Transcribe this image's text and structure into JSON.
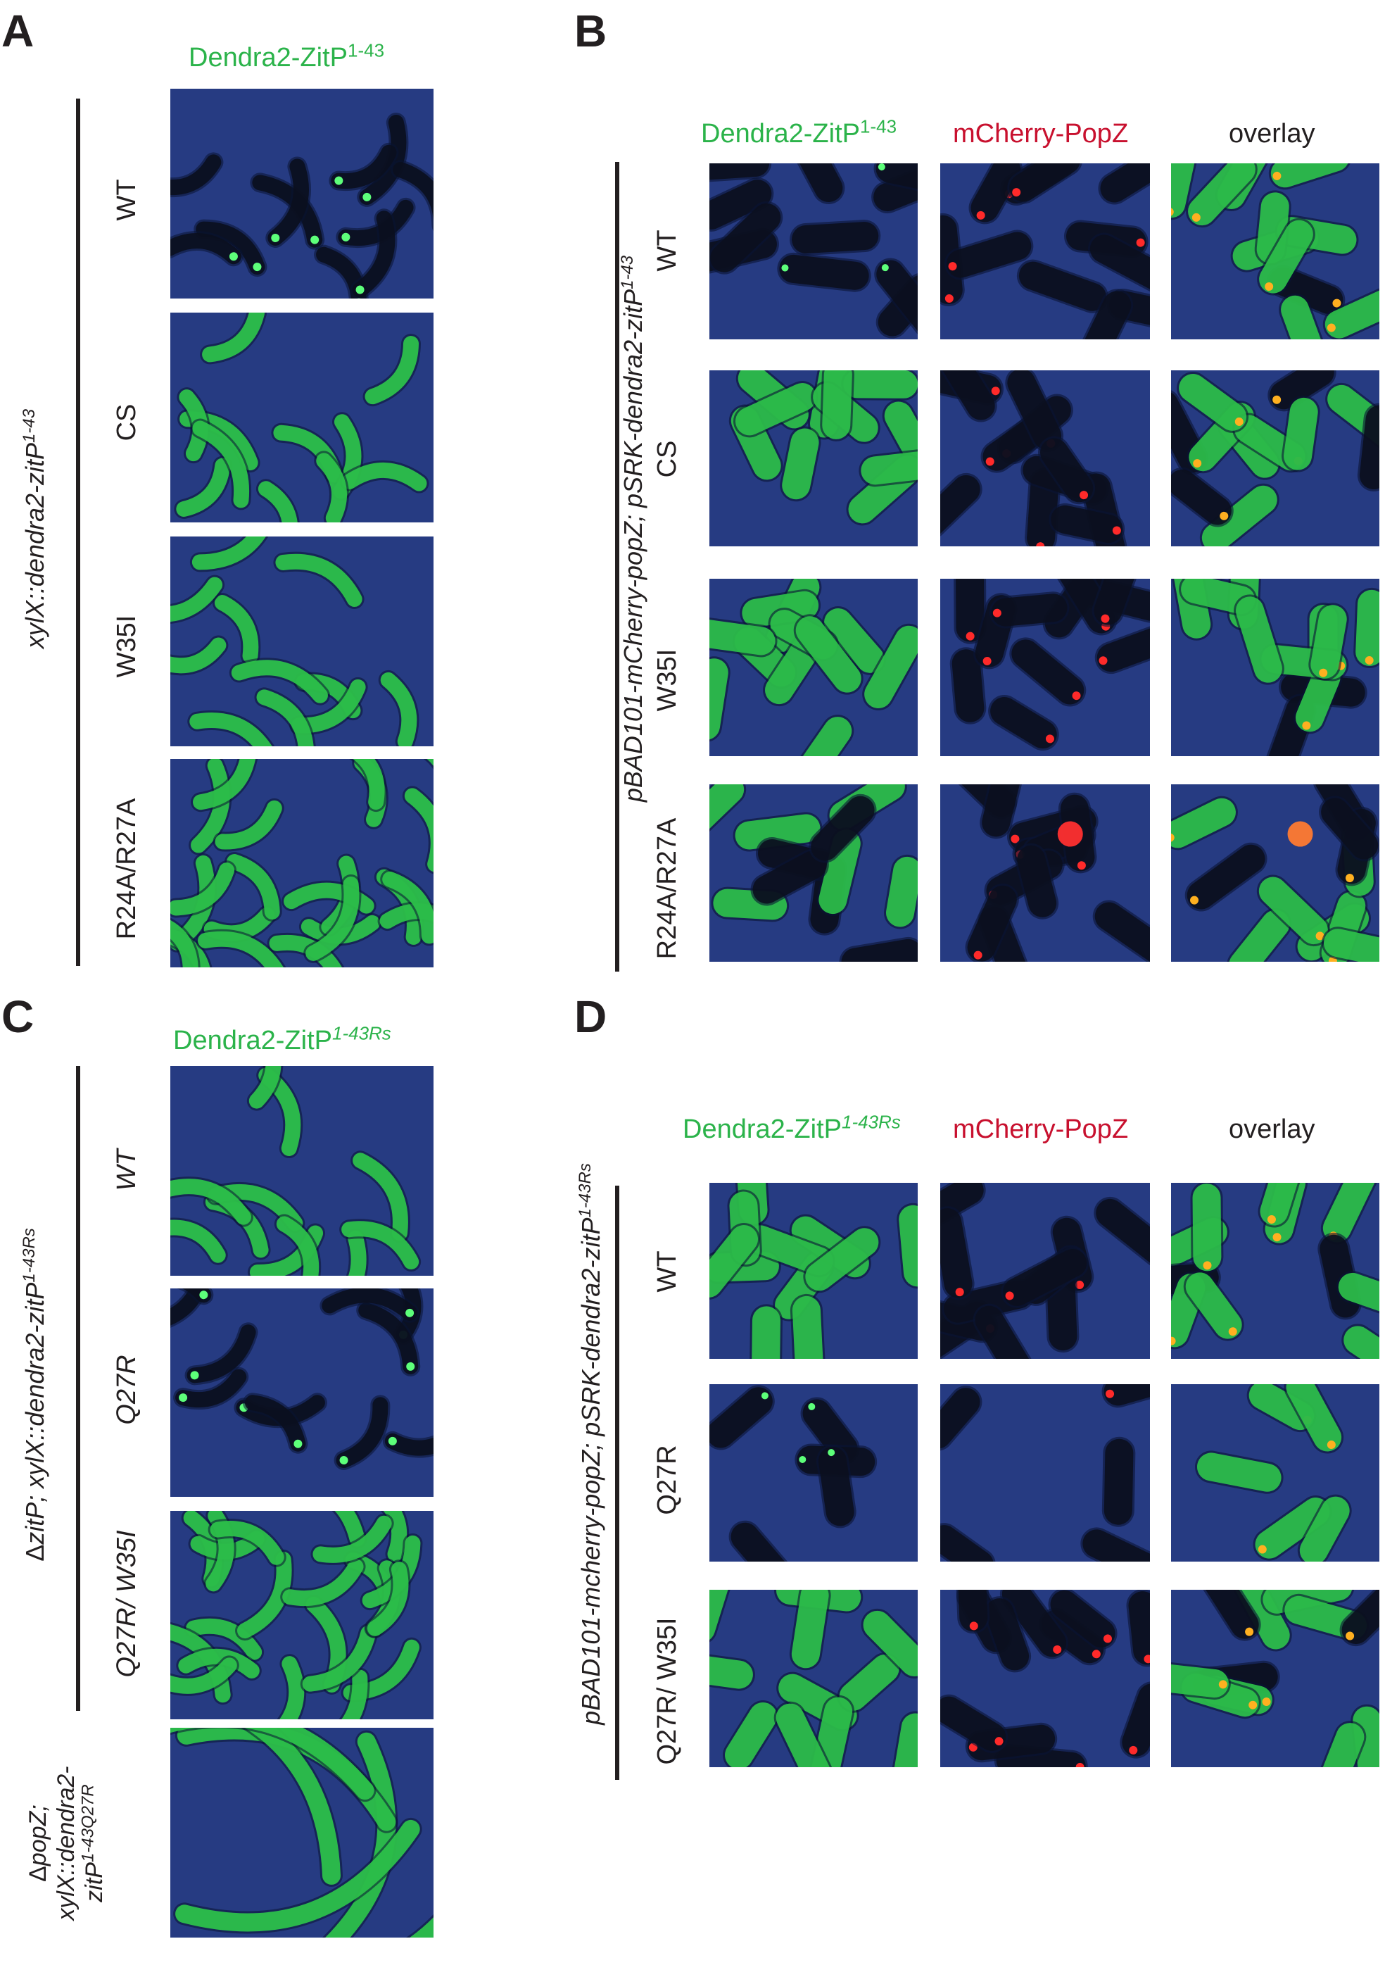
{
  "panels": {
    "A": {
      "letter": "A",
      "header": {
        "main": "Dendra2-ZitP",
        "sup": "1-43"
      },
      "side": {
        "main": "xylX::dendra2-zitP",
        "sup": "1-43"
      },
      "rows": [
        "WT",
        "CS",
        "W35I",
        "R24A/R27A"
      ]
    },
    "B": {
      "letter": "B",
      "headers": [
        {
          "main": "Dendra2-ZitP",
          "sup": "1-43"
        },
        {
          "main": "mCherry-PopZ"
        },
        {
          "main": "overlay"
        }
      ],
      "side": {
        "main": "pBAD101-mCherry-popZ; pSRK-dendra2-zitP",
        "sup": "1-43"
      },
      "rows": [
        "WT",
        "CS",
        "W35I",
        "R24A/R27A"
      ]
    },
    "C": {
      "letter": "C",
      "header": {
        "main": "Dendra2-ZitP",
        "sup": "1-43Rs"
      },
      "side": {
        "prefix": "Δ",
        "main": "zitP; xylX::dendra2-zitP",
        "sup": "1-43Rs"
      },
      "side2": {
        "line1_prefix": "Δ",
        "line1": "popZ;",
        "line2": "xylX::dendra2-",
        "line3": "zitP",
        "line3_sup": "1-43Q27R"
      },
      "rows": [
        "WT",
        "Q27R",
        "Q27R/ W35I"
      ]
    },
    "D": {
      "letter": "D",
      "headers": [
        {
          "main": "Dendra2-ZitP",
          "sup": "1-43Rs"
        },
        {
          "main": "mCherry-PopZ"
        },
        {
          "main": "overlay"
        }
      ],
      "side": {
        "main": "pBAD101-mcherry-popZ; pSRK-dendra2-zitP",
        "sup": "1-43Rs"
      },
      "rows": [
        "WT",
        "Q27R",
        "Q27R/ W35I"
      ]
    }
  },
  "colors": {
    "background_blue": "#23357a",
    "cell_green": "#2ec44a",
    "cell_dark": "#0b0f1e",
    "focus_red": "#ff2a2a",
    "header_green": "#2bb34a",
    "header_red": "#c8102e"
  }
}
